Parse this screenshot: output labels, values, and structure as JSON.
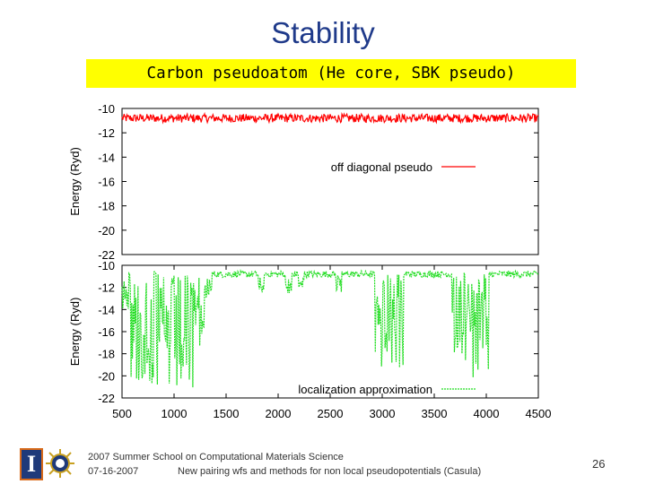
{
  "slide": {
    "title": "Stability",
    "subtitle": "Carbon pseudoatom (He core, SBK pseudo)",
    "footer_line1": "2007 Summer School on Computational Materials Science",
    "footer_date": "07-16-2007",
    "footer_talk": "New pairing wfs and methods for non local pseudopotentials (Casula)",
    "page_number": "26",
    "logo_letter": "I"
  },
  "colors": {
    "title": "#1f3a8a",
    "subtitle_bg": "#ffff00",
    "series_red": "#ff0000",
    "series_green": "#22dd22"
  },
  "chart_data": [
    {
      "type": "line",
      "xlim": [
        500,
        4500
      ],
      "ylim": [
        -22,
        -10
      ],
      "yticks": [
        -10,
        -12,
        -14,
        -16,
        -18,
        -20,
        -22
      ],
      "ylabel": "Energy (Ryd)",
      "xlabel": "",
      "series": [
        {
          "name": "off diagonal pseudo",
          "color": "#ff0000",
          "style": "solid",
          "baseline": -10.8,
          "noise_amplitude": 0.35,
          "dips": []
        }
      ]
    },
    {
      "type": "line",
      "xlim": [
        500,
        4500
      ],
      "ylim": [
        -22,
        -10
      ],
      "xticks": [
        500,
        1000,
        1500,
        2000,
        2500,
        3000,
        3500,
        4000,
        4500
      ],
      "yticks": [
        -10,
        -12,
        -14,
        -16,
        -18,
        -20,
        -22
      ],
      "ylabel": "Energy (Ryd)",
      "xlabel": "",
      "series": [
        {
          "name": "localization approximation",
          "color": "#22dd22",
          "style": "dashed",
          "baseline": -10.8,
          "noise_amplitude": 0.3,
          "dips": [
            {
              "start": 500,
              "end": 560,
              "min": -14
            },
            {
              "start": 580,
              "end": 800,
              "min": -21
            },
            {
              "start": 830,
              "end": 1200,
              "min": -22
            },
            {
              "start": 1200,
              "end": 1300,
              "min": -18
            },
            {
              "start": 1300,
              "end": 1360,
              "min": -13
            },
            {
              "start": 1810,
              "end": 1870,
              "min": -12.5
            },
            {
              "start": 2070,
              "end": 2130,
              "min": -12.8
            },
            {
              "start": 2200,
              "end": 2250,
              "min": -12.3
            },
            {
              "start": 2560,
              "end": 2610,
              "min": -12.5
            },
            {
              "start": 2930,
              "end": 3200,
              "min": -19.5
            },
            {
              "start": 3670,
              "end": 3780,
              "min": -18
            },
            {
              "start": 3800,
              "end": 3870,
              "min": -19
            },
            {
              "start": 3870,
              "end": 4020,
              "min": -20.5
            }
          ]
        }
      ]
    }
  ]
}
